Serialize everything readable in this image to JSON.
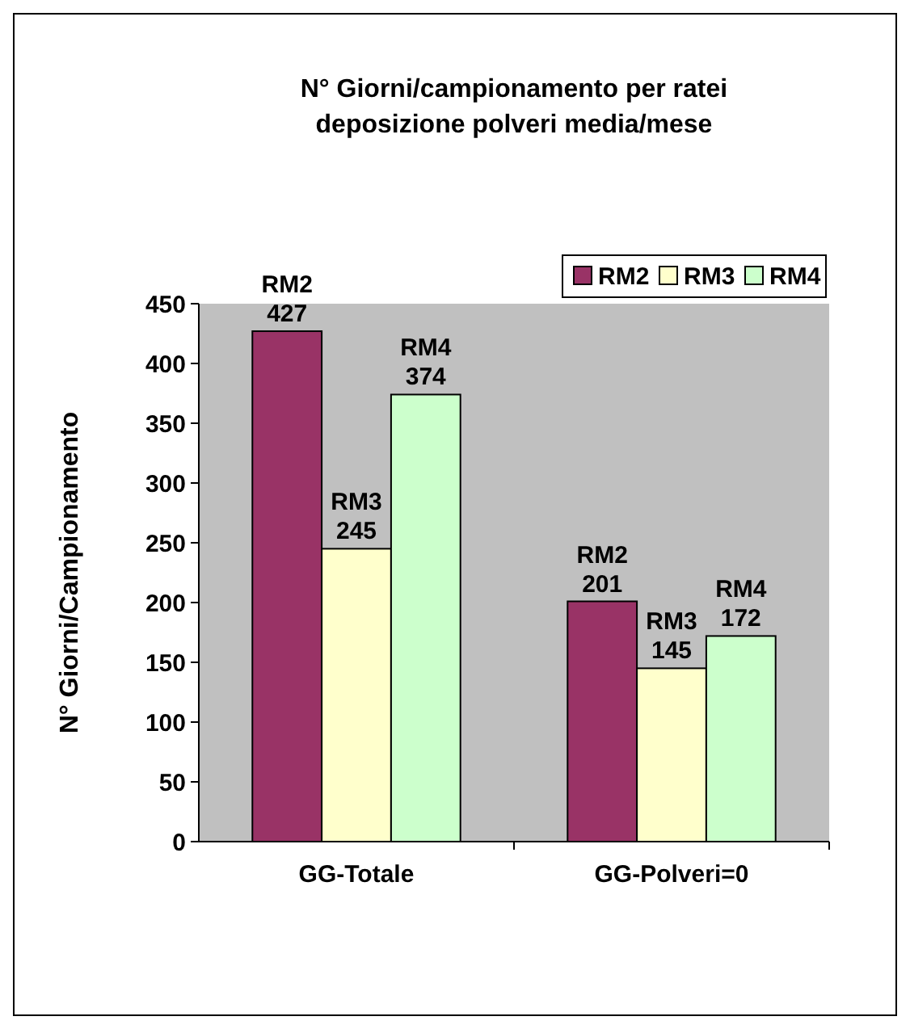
{
  "chart_data": {
    "type": "bar",
    "title": "N° Giorni/campionamento per ratei\ndeposizione polveri media/mese",
    "ylabel": "N° Giorni/Campionamento",
    "categories": [
      "GG-Totale",
      "GG-Polveri=0"
    ],
    "series": [
      {
        "name": "RM2",
        "color": "#993366",
        "values": [
          427,
          201
        ]
      },
      {
        "name": "RM3",
        "color": "#ffffcc",
        "values": [
          245,
          145
        ]
      },
      {
        "name": "RM4",
        "color": "#ccffcc",
        "values": [
          374,
          172
        ]
      }
    ],
    "ylim": [
      0,
      450
    ],
    "yticks": [
      0,
      50,
      100,
      150,
      200,
      250,
      300,
      350,
      400,
      450
    ],
    "data_labels": true,
    "legend": "top right",
    "grid": false
  }
}
